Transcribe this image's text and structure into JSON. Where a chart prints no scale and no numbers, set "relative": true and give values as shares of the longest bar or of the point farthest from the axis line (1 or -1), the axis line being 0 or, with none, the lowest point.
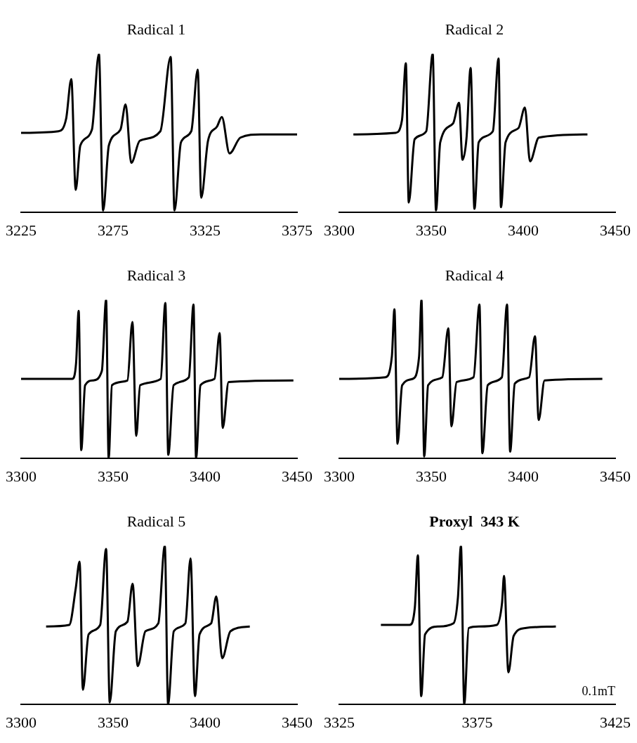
{
  "chart_data": [
    {
      "type": "line",
      "title": "Radical 1",
      "relative": true,
      "xlim": [
        3225,
        3375
      ],
      "xticks": [
        3225,
        3275,
        3325,
        3375
      ],
      "series": [
        {
          "color": "#000000",
          "x": [
            3225,
            3245.3,
            3249.5,
            3252.3,
            3254.7,
            3257.2,
            3263.5,
            3267.3,
            3269.6,
            3272.7,
            3279.0,
            3281.8,
            3284.9,
            3289.5,
            3300.7,
            3306.3,
            3308.4,
            3311.9,
            3317.5,
            3321.0,
            3322.9,
            3326.6,
            3331.5,
            3334.1,
            3338.3,
            3344.2,
            3355.4,
            3375
          ],
          "values": [
            0.5,
            0.51,
            0.59,
            0.84,
            0.14,
            0.42,
            0.52,
            1.0,
            0.01,
            0.42,
            0.52,
            0.68,
            0.31,
            0.45,
            0.51,
            0.98,
            0.01,
            0.44,
            0.51,
            0.9,
            0.09,
            0.45,
            0.54,
            0.6,
            0.37,
            0.47,
            0.49,
            0.49
          ]
        }
      ]
    },
    {
      "type": "line",
      "title": "Radical 2",
      "relative": true,
      "xlim": [
        3300,
        3450
      ],
      "xticks": [
        3300,
        3350,
        3400,
        3450
      ],
      "series": [
        {
          "color": "#000000",
          "x": [
            3307.7,
            3330.6,
            3334.1,
            3336.2,
            3337.8,
            3341.0,
            3347.3,
            3350.8,
            3352.6,
            3354.9,
            3361.9,
            3365.1,
            3367.0,
            3369.2,
            3371.4,
            3373.5,
            3375.8,
            3383.5,
            3386.6,
            3387.9,
            3390.4,
            3397.4,
            3400.9,
            3403.7,
            3408.5,
            3434.9
          ],
          "values": [
            0.49,
            0.5,
            0.58,
            0.94,
            0.06,
            0.46,
            0.51,
            1.0,
            0.01,
            0.44,
            0.56,
            0.69,
            0.33,
            0.47,
            0.91,
            0.02,
            0.44,
            0.51,
            0.97,
            0.03,
            0.44,
            0.53,
            0.66,
            0.32,
            0.47,
            0.49
          ]
        }
      ]
    },
    {
      "type": "line",
      "title": "Radical 3",
      "relative": true,
      "xlim": [
        3300,
        3450
      ],
      "xticks": [
        3300,
        3350,
        3400,
        3450
      ],
      "series": [
        {
          "color": "#000000",
          "x": [
            3300,
            3327.8,
            3329.9,
            3331.3,
            3332.7,
            3334.8,
            3339.0,
            3343.9,
            3346.2,
            3347.6,
            3349.4,
            3357.8,
            3360.5,
            3362.6,
            3364.7,
            3375.9,
            3378.4,
            3380.0,
            3382.9,
            3391.2,
            3393.7,
            3395.1,
            3397.5,
            3405.1,
            3407.9,
            3409.6,
            3412.8,
            3448.0
          ],
          "values": [
            0.5,
            0.5,
            0.6,
            0.93,
            0.05,
            0.46,
            0.49,
            0.55,
            1.0,
            0.0,
            0.46,
            0.49,
            0.86,
            0.14,
            0.46,
            0.5,
            0.98,
            0.02,
            0.46,
            0.51,
            0.97,
            0.0,
            0.46,
            0.5,
            0.79,
            0.19,
            0.48,
            0.49
          ]
        }
      ]
    },
    {
      "type": "line",
      "title": "Radical 4",
      "relative": true,
      "xlim": [
        3300,
        3450
      ],
      "xticks": [
        3300,
        3350,
        3400,
        3450
      ],
      "series": [
        {
          "color": "#000000",
          "x": [
            3300,
            3325.0,
            3328.6,
            3330.0,
            3331.7,
            3334.2,
            3339.9,
            3343.4,
            3344.7,
            3346.2,
            3348.3,
            3356.0,
            3359.3,
            3361.0,
            3363.8,
            3373.0,
            3376.2,
            3377.8,
            3380.7,
            3388.4,
            3391.2,
            3392.9,
            3395.4,
            3403.2,
            3406.4,
            3408.4,
            3411.6,
            3443.0
          ],
          "values": [
            0.5,
            0.51,
            0.64,
            0.94,
            0.09,
            0.46,
            0.5,
            0.64,
            1.0,
            0.01,
            0.46,
            0.51,
            0.82,
            0.2,
            0.48,
            0.51,
            0.97,
            0.03,
            0.46,
            0.51,
            0.97,
            0.04,
            0.47,
            0.51,
            0.77,
            0.24,
            0.49,
            0.5
          ]
        }
      ]
    },
    {
      "type": "line",
      "title": "Radical 5",
      "relative": true,
      "xlim": [
        3300,
        3450
      ],
      "xticks": [
        3300,
        3350,
        3400,
        3450
      ],
      "series": [
        {
          "color": "#000000",
          "x": [
            3313.6,
            3326.2,
            3329.7,
            3331.8,
            3333.6,
            3336.7,
            3343.0,
            3346.2,
            3348.2,
            3351.5,
            3357.8,
            3360.6,
            3363.4,
            3367.6,
            3374.6,
            3378.1,
            3379.9,
            3383.0,
            3389.3,
            3392.1,
            3394.5,
            3397.0,
            3403.3,
            3406.1,
            3409.3,
            3413.8,
            3424.3
          ],
          "values": [
            0.49,
            0.5,
            0.73,
            0.9,
            0.09,
            0.44,
            0.5,
            0.98,
            0.01,
            0.46,
            0.52,
            0.76,
            0.24,
            0.46,
            0.51,
            1.0,
            0.0,
            0.46,
            0.51,
            0.92,
            0.05,
            0.44,
            0.51,
            0.68,
            0.29,
            0.46,
            0.49
          ]
        }
      ]
    },
    {
      "type": "line",
      "title": "Proxyl  343 K",
      "relative": true,
      "xlim": [
        3325,
        3425
      ],
      "xticks": [
        3325,
        3375,
        3425
      ],
      "annotations": [
        "0.1mT"
      ],
      "series": [
        {
          "color": "#000000",
          "x": [
            3340.1,
            3350.5,
            3352.4,
            3353.5,
            3354.7,
            3356.1,
            3360.8,
            3366.4,
            3368.0,
            3369.1,
            3370.3,
            3371.9,
            3375.6,
            3382.1,
            3384.0,
            3384.7,
            3386.3,
            3388.2,
            3392.4,
            3403.5
          ],
          "values": [
            0.5,
            0.5,
            0.61,
            0.94,
            0.05,
            0.44,
            0.49,
            0.51,
            0.67,
            1.0,
            0.0,
            0.48,
            0.49,
            0.5,
            0.64,
            0.81,
            0.2,
            0.43,
            0.48,
            0.49
          ]
        }
      ]
    }
  ]
}
